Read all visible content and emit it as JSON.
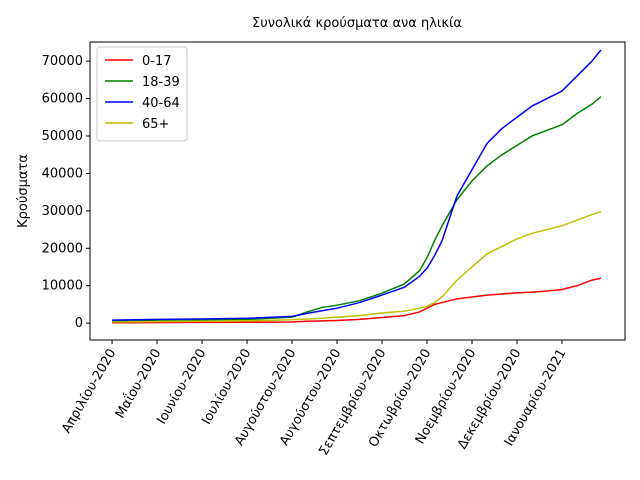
{
  "chart_data": {
    "type": "line",
    "title": "Συνολικά κρούσματα ανα ηλικία",
    "ylabel": "Κρούσματα",
    "x": [
      0,
      30,
      60,
      90,
      120,
      130,
      140,
      150,
      165,
      180,
      195,
      205,
      210,
      215,
      220,
      230,
      240,
      250,
      260,
      270,
      280,
      290,
      300,
      310,
      320,
      326
    ],
    "series": [
      {
        "name": "0-17",
        "color": "#ff0000",
        "values": [
          100,
          150,
          200,
          250,
          300,
          500,
          600,
          700,
          1000,
          1500,
          2000,
          3000,
          4000,
          5000,
          5500,
          6500,
          7000,
          7500,
          7800,
          8100,
          8300,
          8600,
          9000,
          10000,
          11500,
          12000
        ]
      },
      {
        "name": "18-39",
        "color": "#008000",
        "values": [
          600,
          800,
          900,
          1000,
          1600,
          3000,
          4200,
          4800,
          6000,
          8000,
          10500,
          14000,
          17500,
          22000,
          26000,
          33000,
          38000,
          42000,
          45000,
          47500,
          50000,
          51500,
          53000,
          56000,
          58500,
          60500
        ]
      },
      {
        "name": "40-64",
        "color": "#0000ff",
        "values": [
          800,
          1000,
          1100,
          1300,
          1800,
          2600,
          3300,
          4000,
          5500,
          7500,
          9600,
          12500,
          14700,
          18000,
          22000,
          34000,
          41000,
          48000,
          52000,
          55000,
          58000,
          60000,
          62000,
          66000,
          70000,
          73000
        ]
      },
      {
        "name": "65+",
        "color": "#bfbf00",
        "values": [
          300,
          400,
          500,
          600,
          900,
          1100,
          1300,
          1600,
          2000,
          2700,
          3200,
          4000,
          4500,
          5500,
          7000,
          11500,
          15000,
          18500,
          20500,
          22500,
          24000,
          25000,
          26000,
          27500,
          29000,
          29800
        ]
      }
    ],
    "xlim": [
      -14.7,
      342
    ],
    "xticks": [
      {
        "value": 0,
        "label": "Απριλίου-2020"
      },
      {
        "value": 30,
        "label": "Μαΐου-2020"
      },
      {
        "value": 60,
        "label": "Ιουνίου-2020"
      },
      {
        "value": 90,
        "label": "Ιουλίου-2020"
      },
      {
        "value": 120,
        "label": "Αυγούστου-2020"
      },
      {
        "value": 150,
        "label": "Αυγούστου-2020"
      },
      {
        "value": 180,
        "label": "Σεπτεμβρίου-2020"
      },
      {
        "value": 210,
        "label": "Οκτωβρίου-2020"
      },
      {
        "value": 240,
        "label": "Νοεμβρίου-2020"
      },
      {
        "value": 270,
        "label": "Δεκεμβρίου-2020"
      },
      {
        "value": 300,
        "label": "Ιανουαρίου-2021"
      }
    ],
    "ylim": [
      -4500,
      75100
    ],
    "yticks": [
      0,
      10000,
      20000,
      30000,
      40000,
      50000,
      60000,
      70000
    ],
    "legend": "upper left"
  }
}
